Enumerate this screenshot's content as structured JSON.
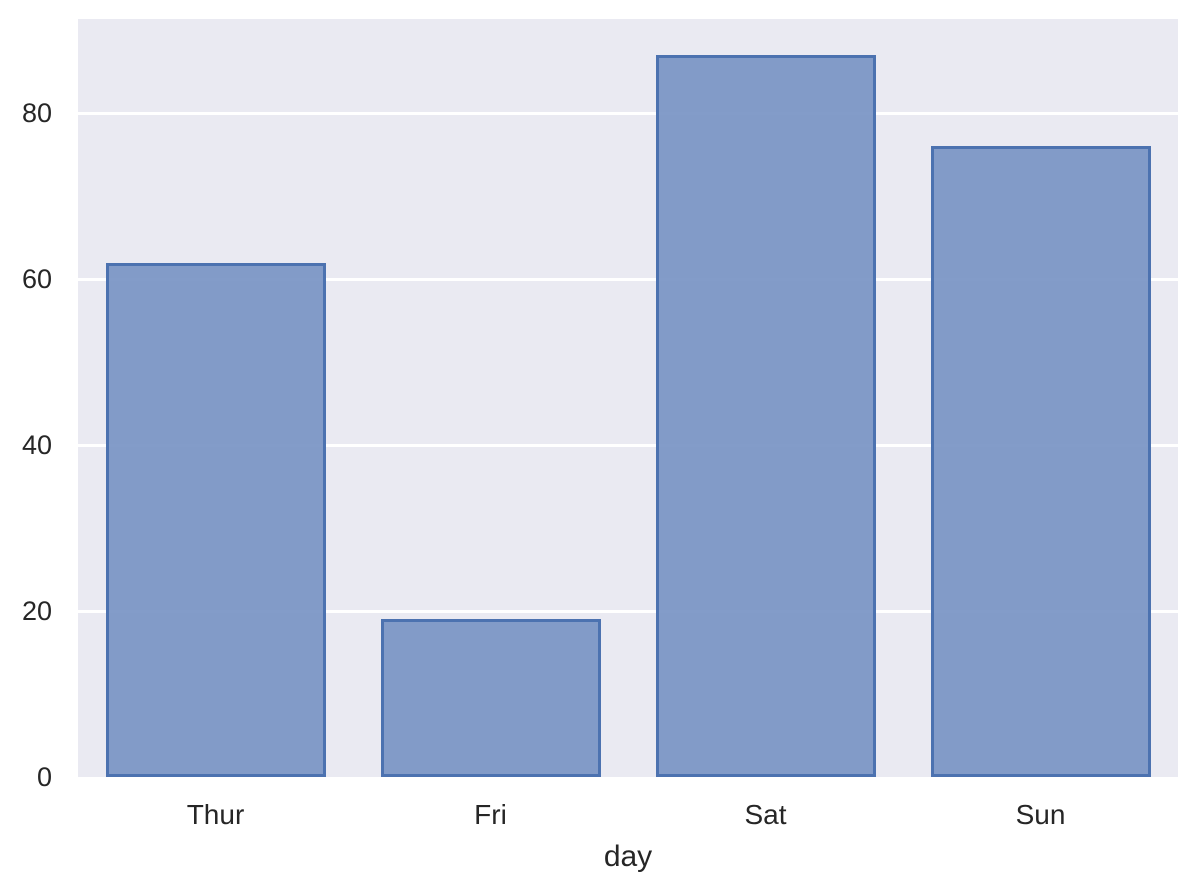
{
  "chart_data": {
    "type": "bar",
    "categories": [
      "Thur",
      "Fri",
      "Sat",
      "Sun"
    ],
    "values": [
      62,
      19,
      87,
      76
    ],
    "title": "",
    "xlabel": "day",
    "ylabel": "",
    "yticks": [
      0,
      20,
      40,
      60,
      80
    ],
    "ylim": [
      0,
      91.35
    ],
    "grid": true,
    "legend_position": "none",
    "colors": {
      "bar_fill": "#7a94c5",
      "bar_fill_alpha": 0.93,
      "bar_edge": "#4c72b0",
      "plot_background": "#eaeaf2",
      "figure_background": "#ffffff",
      "gridline": "#ffffff",
      "tick_label": "#262626",
      "axis_label": "#262626"
    }
  }
}
